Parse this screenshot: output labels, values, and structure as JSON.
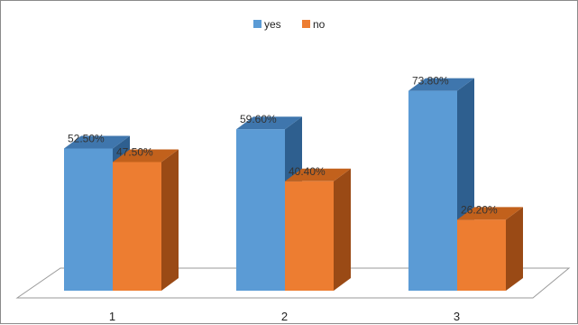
{
  "chart_data": {
    "type": "bar",
    "title": "",
    "xlabel": "",
    "ylabel": "",
    "categories": [
      "1",
      "2",
      "3"
    ],
    "series": [
      {
        "name": "yes",
        "values": [
          52.5,
          59.6,
          73.8
        ],
        "labels": [
          "52.50%",
          "59.60%",
          "73.80%"
        ]
      },
      {
        "name": "no",
        "values": [
          47.5,
          40.4,
          26.2
        ],
        "labels": [
          "47.50%",
          "40.40%",
          "26.20%"
        ]
      }
    ],
    "unit": "%",
    "ylim": [
      0,
      80
    ],
    "grid": false,
    "legend_position": "top-center",
    "style": "3d-clustered-column",
    "colors": {
      "yes_front": "#5B9BD5",
      "yes_top": "#3F76AD",
      "yes_side": "#2E5F8F",
      "no_front": "#ED7D31",
      "no_top": "#C2611C",
      "no_side": "#9A4A15",
      "floor_stroke": "#9a9a9a"
    }
  }
}
